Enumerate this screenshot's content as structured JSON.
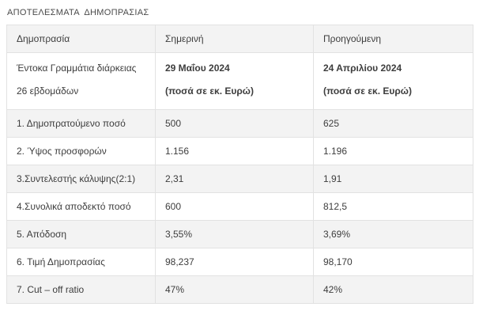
{
  "title": "ΑΠΟΤΕΛΕΣΜΑΤΑ  ΔΗΜΟΠΡΑΣΙΑΣ",
  "colors": {
    "stripe_gray": "#f3f3f3",
    "border": "#e2e2e2",
    "text": "#3d3d3d"
  },
  "table": {
    "headers": [
      "Δημοπρασία",
      "Σημερινή",
      "Προηγούμενη"
    ],
    "subheader": {
      "label_line1": "Έντοκα Γραμμάτια διάρκειας",
      "label_line2": "26 εβδομάδων",
      "current_line1": "29 Μαΐου 2024",
      "current_line2": "(ποσά σε εκ. Ευρώ)",
      "previous_line1": "24 Απριλίου 2024",
      "previous_line2": "(ποσά σε εκ. Ευρώ)"
    },
    "rows": [
      {
        "label": "1. Δημοπρατούμενο ποσό",
        "current": "500",
        "previous": "625"
      },
      {
        "label": "2. Ύψος προσφορών",
        "current": "1.156",
        "previous": "1.196"
      },
      {
        "label": "3.Συντελεστής κάλυψης(2:1)",
        "current": "2,31",
        "previous": "1,91"
      },
      {
        "label": "4.Συνολικά αποδεκτό ποσό",
        "current": "600",
        "previous": "812,5"
      },
      {
        "label": "5. Απόδοση",
        "current": "3,55%",
        "previous": "3,69%"
      },
      {
        "label": "6. Τιμή Δημοπρασίας",
        "current": "98,237",
        "previous": "98,170"
      },
      {
        "label": "7. Cut – off ratio",
        "current": "47%",
        "previous": "42%"
      }
    ]
  }
}
